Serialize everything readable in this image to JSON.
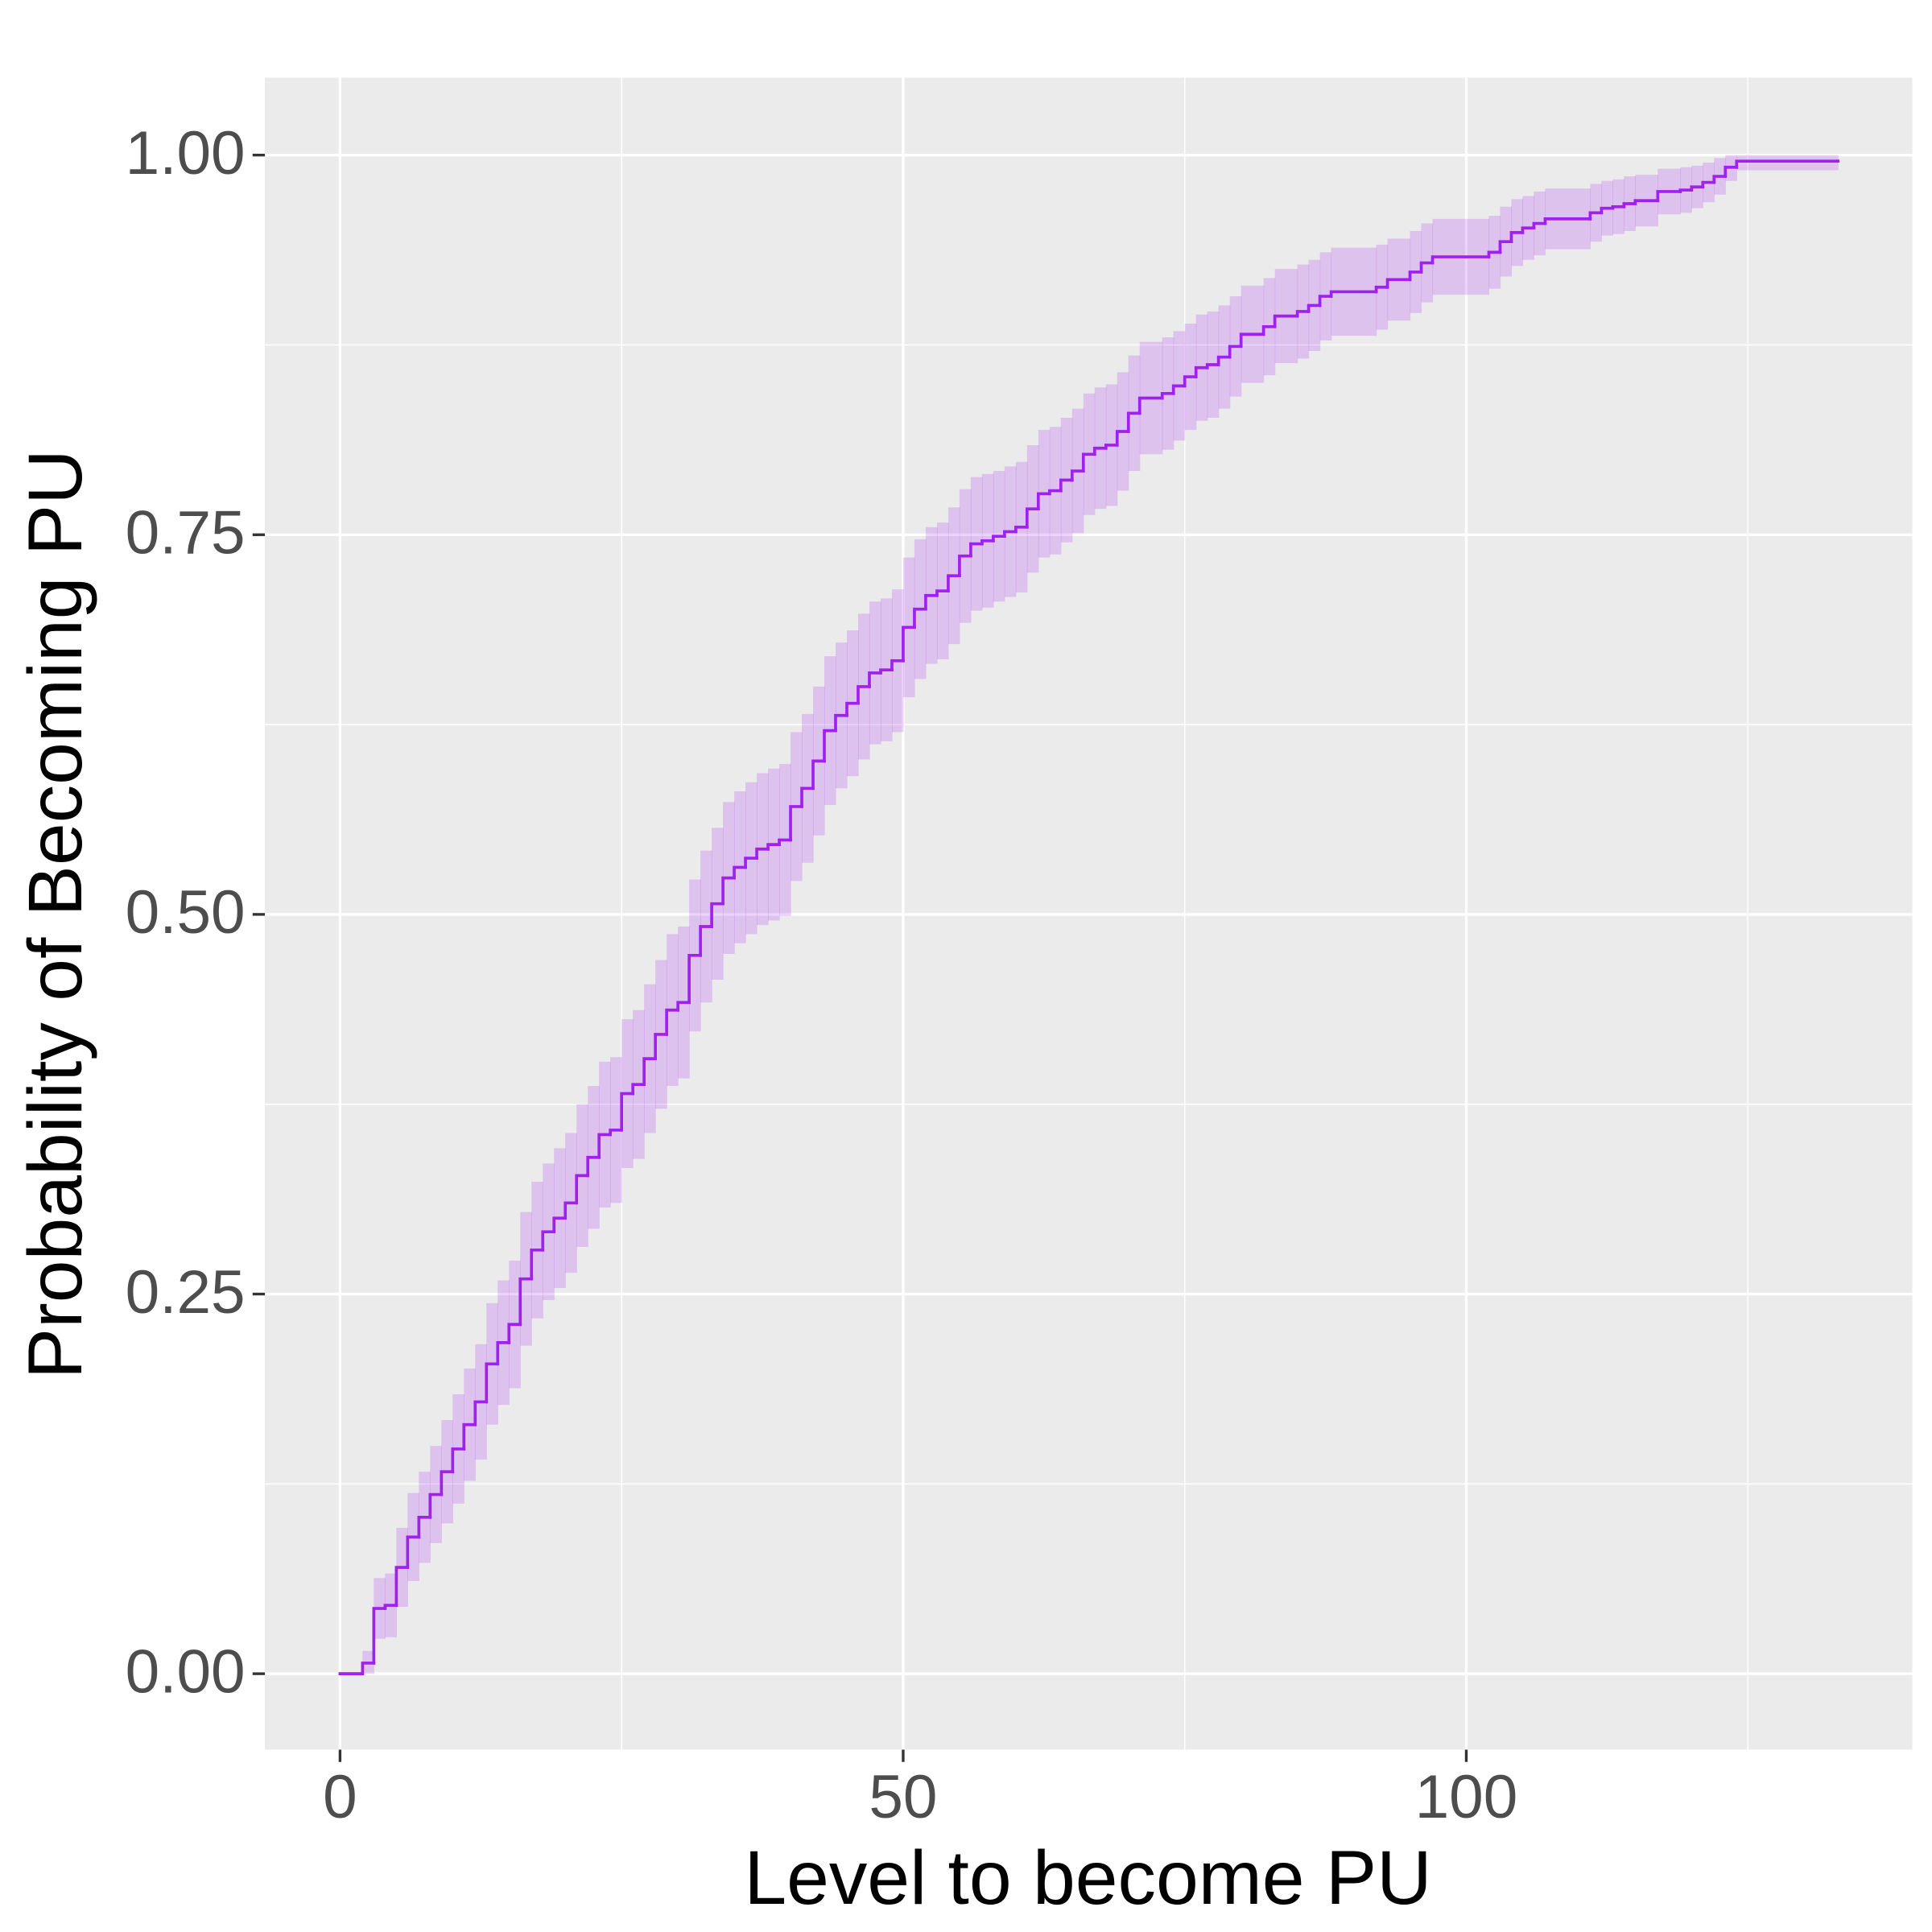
{
  "chart_data": {
    "type": "step",
    "x_label": "Level to become PU",
    "y_label": "Probability of Becoming PU",
    "x": [
      0,
      2,
      3,
      4,
      5,
      6,
      7,
      8,
      9,
      10,
      11,
      12,
      13,
      14,
      15,
      16,
      17,
      18,
      19,
      20,
      21,
      22,
      23,
      24,
      25,
      26,
      27,
      28,
      29,
      30,
      31,
      32,
      33,
      34,
      35,
      36,
      37,
      38,
      39,
      40,
      41,
      42,
      43,
      44,
      45,
      46,
      47,
      48,
      49,
      50,
      51,
      52,
      53,
      54,
      55,
      56,
      57,
      58,
      59,
      60,
      61,
      62,
      63,
      64,
      65,
      66,
      67,
      68,
      69,
      70,
      71,
      73,
      74,
      75,
      76,
      77,
      78,
      79,
      80,
      82,
      83,
      85,
      86,
      87,
      88,
      92,
      93,
      95,
      96,
      97,
      102,
      103,
      104,
      105,
      106,
      107,
      111,
      112,
      113,
      114,
      115,
      117,
      119,
      120,
      121,
      122,
      123,
      124,
      133
    ],
    "series": [
      {
        "color": "#a020f0",
        "band_color": "#a020f0",
        "values": [
          0,
          0.007,
          0.043,
          0.045,
          0.07,
          0.09,
          0.103,
          0.118,
          0.133,
          0.148,
          0.164,
          0.179,
          0.204,
          0.218,
          0.23,
          0.26,
          0.279,
          0.291,
          0.3,
          0.31,
          0.328,
          0.34,
          0.355,
          0.358,
          0.382,
          0.388,
          0.405,
          0.421,
          0.437,
          0.442,
          0.473,
          0.492,
          0.507,
          0.524,
          0.531,
          0.537,
          0.543,
          0.546,
          0.549,
          0.571,
          0.583,
          0.601,
          0.621,
          0.631,
          0.639,
          0.65,
          0.659,
          0.661,
          0.667,
          0.689,
          0.701,
          0.71,
          0.713,
          0.723,
          0.736,
          0.744,
          0.746,
          0.749,
          0.752,
          0.755,
          0.767,
          0.777,
          0.779,
          0.786,
          0.792,
          0.803,
          0.807,
          0.809,
          0.818,
          0.83,
          0.84,
          0.843,
          0.848,
          0.854,
          0.86,
          0.862,
          0.867,
          0.874,
          0.882,
          0.887,
          0.894,
          0.897,
          0.901,
          0.907,
          0.91,
          0.913,
          0.918,
          0.923,
          0.929,
          0.933,
          0.936,
          0.943,
          0.949,
          0.952,
          0.955,
          0.958,
          0.962,
          0.965,
          0.966,
          0.968,
          0.97,
          0.976,
          0.977,
          0.979,
          0.982,
          0.986,
          0.992,
          0.996,
          0.996
        ],
        "lower": [
          0,
          0,
          0.023,
          0.024,
          0.044,
          0.061,
          0.073,
          0.086,
          0.099,
          0.112,
          0.127,
          0.141,
          0.164,
          0.177,
          0.188,
          0.216,
          0.234,
          0.246,
          0.254,
          0.264,
          0.281,
          0.293,
          0.307,
          0.31,
          0.333,
          0.339,
          0.356,
          0.372,
          0.387,
          0.392,
          0.423,
          0.442,
          0.457,
          0.474,
          0.481,
          0.487,
          0.493,
          0.496,
          0.499,
          0.522,
          0.534,
          0.552,
          0.572,
          0.583,
          0.591,
          0.602,
          0.612,
          0.614,
          0.62,
          0.643,
          0.655,
          0.665,
          0.668,
          0.678,
          0.692,
          0.7,
          0.702,
          0.706,
          0.709,
          0.712,
          0.725,
          0.735,
          0.737,
          0.745,
          0.751,
          0.763,
          0.767,
          0.769,
          0.779,
          0.792,
          0.803,
          0.806,
          0.812,
          0.819,
          0.825,
          0.827,
          0.833,
          0.841,
          0.85,
          0.855,
          0.863,
          0.866,
          0.871,
          0.878,
          0.881,
          0.885,
          0.891,
          0.896,
          0.903,
          0.908,
          0.912,
          0.92,
          0.927,
          0.931,
          0.934,
          0.938,
          0.943,
          0.947,
          0.948,
          0.95,
          0.953,
          0.961,
          0.962,
          0.965,
          0.969,
          0.974,
          0.983,
          0.99,
          0.99
        ],
        "upper": [
          0,
          0.015,
          0.063,
          0.066,
          0.096,
          0.119,
          0.133,
          0.15,
          0.167,
          0.184,
          0.201,
          0.217,
          0.244,
          0.259,
          0.272,
          0.304,
          0.324,
          0.336,
          0.346,
          0.356,
          0.375,
          0.387,
          0.403,
          0.406,
          0.431,
          0.437,
          0.454,
          0.47,
          0.487,
          0.492,
          0.523,
          0.542,
          0.557,
          0.574,
          0.581,
          0.587,
          0.593,
          0.596,
          0.599,
          0.62,
          0.632,
          0.65,
          0.67,
          0.679,
          0.687,
          0.698,
          0.706,
          0.708,
          0.714,
          0.735,
          0.747,
          0.755,
          0.758,
          0.768,
          0.78,
          0.788,
          0.79,
          0.792,
          0.795,
          0.798,
          0.809,
          0.819,
          0.821,
          0.827,
          0.833,
          0.843,
          0.847,
          0.849,
          0.857,
          0.868,
          0.877,
          0.88,
          0.884,
          0.889,
          0.895,
          0.897,
          0.901,
          0.907,
          0.914,
          0.919,
          0.925,
          0.928,
          0.931,
          0.936,
          0.939,
          0.941,
          0.945,
          0.95,
          0.955,
          0.958,
          0.96,
          0.966,
          0.971,
          0.973,
          0.976,
          0.978,
          0.981,
          0.983,
          0.984,
          0.986,
          0.987,
          0.991,
          0.992,
          0.993,
          0.995,
          0.998,
          1.0,
          1.0,
          1.0
        ]
      }
    ],
    "xlim": [
      -6.67,
      139.6
    ],
    "ylim": [
      -0.05,
      1.051
    ],
    "xticks": [
      0,
      50,
      100
    ],
    "yticks": [
      {
        "value": 0,
        "label": "0.00"
      },
      {
        "value": 0.25,
        "label": "0.25"
      },
      {
        "value": 0.5,
        "label": "0.50"
      },
      {
        "value": 0.75,
        "label": "0.75"
      },
      {
        "value": 1,
        "label": "1.00"
      }
    ],
    "x_minor_grid": [
      25,
      75,
      125
    ],
    "y_minor_grid": [
      0.125,
      0.375,
      0.625,
      0.875
    ],
    "grid": true
  }
}
